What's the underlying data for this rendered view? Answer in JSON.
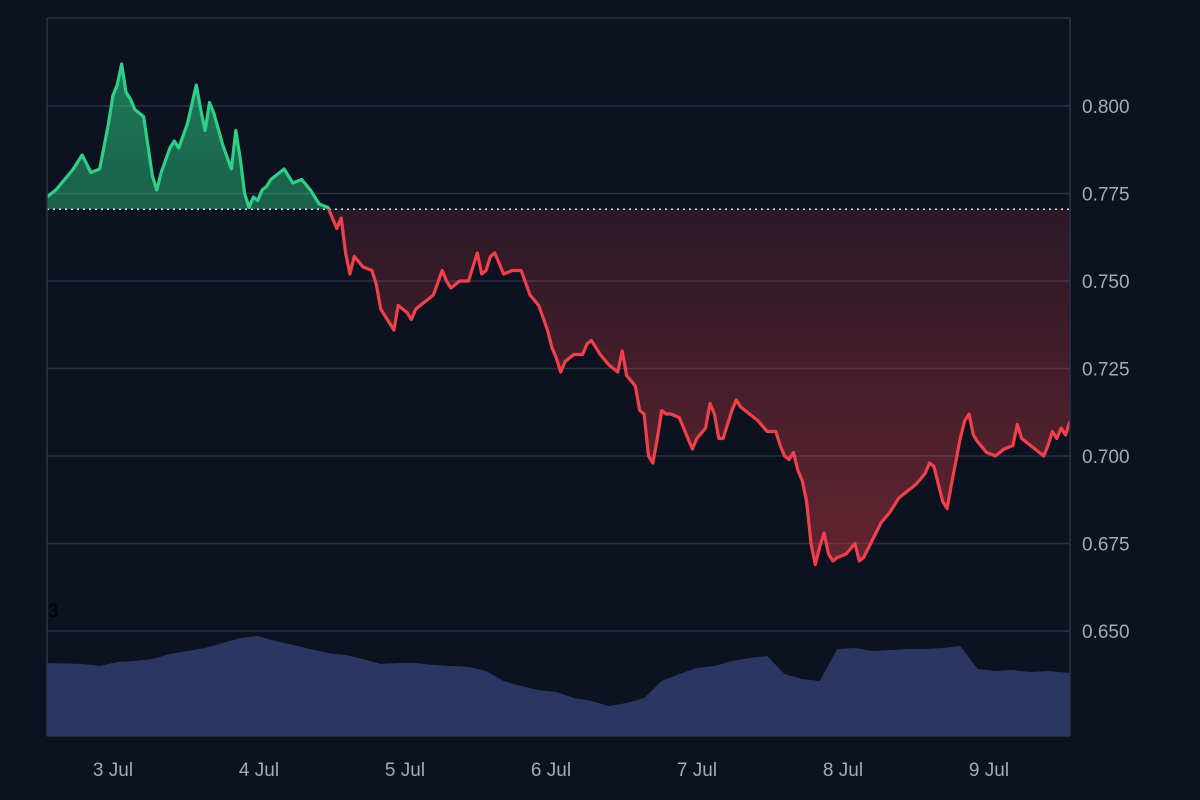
{
  "chart_data": {
    "type": "area",
    "title": "",
    "xlabel": "",
    "ylabel": "",
    "x_ticks": [
      "3 Jul",
      "4 Jul",
      "5 Jul",
      "6 Jul",
      "7 Jul",
      "8 Jul",
      "9 Jul"
    ],
    "x_range": [
      "2 Jul 14:00",
      "9 Jul 14:00"
    ],
    "y_ticks": [
      "0.800",
      "0.775",
      "0.750",
      "0.725",
      "0.700",
      "0.675",
      "0.650"
    ],
    "y_tick_values": [
      0.8,
      0.775,
      0.75,
      0.725,
      0.7,
      0.675,
      0.65
    ],
    "ylim": [
      0.625,
      0.825
    ],
    "baseline": 0.7705,
    "grid": true,
    "colors": {
      "above": "#2ecf86",
      "below": "#f0414b",
      "volume": "#2c3a66",
      "baseline": "#d8dbe2",
      "grid": "#283142",
      "background": "#0c1220"
    },
    "series": [
      {
        "points": [
          [
            0.0,
            0.774
          ],
          [
            0.1,
            0.776
          ],
          [
            0.2,
            0.779
          ],
          [
            0.3,
            0.782
          ],
          [
            0.4,
            0.786
          ],
          [
            0.5,
            0.781
          ],
          [
            0.6,
            0.782
          ],
          [
            0.7,
            0.795
          ],
          [
            0.75,
            0.803
          ],
          [
            0.8,
            0.806
          ],
          [
            0.85,
            0.812
          ],
          [
            0.9,
            0.804
          ],
          [
            0.95,
            0.802
          ],
          [
            1.0,
            0.799
          ],
          [
            1.1,
            0.797
          ],
          [
            1.2,
            0.78
          ],
          [
            1.25,
            0.776
          ],
          [
            1.3,
            0.781
          ],
          [
            1.4,
            0.788
          ],
          [
            1.45,
            0.79
          ],
          [
            1.5,
            0.788
          ],
          [
            1.6,
            0.795
          ],
          [
            1.7,
            0.806
          ],
          [
            1.75,
            0.799
          ],
          [
            1.8,
            0.793
          ],
          [
            1.85,
            0.801
          ],
          [
            1.9,
            0.798
          ],
          [
            2.0,
            0.789
          ],
          [
            2.1,
            0.782
          ],
          [
            2.15,
            0.793
          ],
          [
            2.2,
            0.785
          ],
          [
            2.25,
            0.775
          ],
          [
            2.3,
            0.771
          ],
          [
            2.35,
            0.774
          ],
          [
            2.4,
            0.773
          ],
          [
            2.45,
            0.776
          ],
          [
            2.5,
            0.777
          ],
          [
            2.55,
            0.779
          ],
          [
            2.6,
            0.78
          ],
          [
            2.7,
            0.782
          ],
          [
            2.8,
            0.778
          ],
          [
            2.9,
            0.779
          ],
          [
            3.0,
            0.776
          ],
          [
            3.1,
            0.772
          ],
          [
            3.2,
            0.771
          ],
          [
            3.3,
            0.765
          ],
          [
            3.35,
            0.768
          ],
          [
            3.4,
            0.758
          ],
          [
            3.45,
            0.752
          ],
          [
            3.5,
            0.757
          ],
          [
            3.6,
            0.754
          ],
          [
            3.7,
            0.753
          ],
          [
            3.75,
            0.749
          ],
          [
            3.8,
            0.742
          ],
          [
            3.9,
            0.738
          ],
          [
            3.95,
            0.736
          ],
          [
            4.0,
            0.743
          ],
          [
            4.1,
            0.741
          ],
          [
            4.15,
            0.739
          ],
          [
            4.2,
            0.742
          ],
          [
            4.3,
            0.744
          ],
          [
            4.4,
            0.746
          ],
          [
            4.5,
            0.753
          ],
          [
            4.55,
            0.75
          ],
          [
            4.6,
            0.748
          ],
          [
            4.7,
            0.75
          ],
          [
            4.8,
            0.75
          ],
          [
            4.85,
            0.754
          ],
          [
            4.9,
            0.758
          ],
          [
            4.95,
            0.752
          ],
          [
            5.0,
            0.753
          ],
          [
            5.05,
            0.757
          ],
          [
            5.1,
            0.758
          ],
          [
            5.2,
            0.752
          ],
          [
            5.3,
            0.753
          ],
          [
            5.4,
            0.753
          ],
          [
            5.5,
            0.746
          ],
          [
            5.6,
            0.743
          ],
          [
            5.7,
            0.736
          ],
          [
            5.75,
            0.731
          ],
          [
            5.8,
            0.728
          ],
          [
            5.85,
            0.724
          ],
          [
            5.9,
            0.727
          ],
          [
            6.0,
            0.729
          ],
          [
            6.1,
            0.729
          ],
          [
            6.15,
            0.732
          ],
          [
            6.2,
            0.733
          ],
          [
            6.3,
            0.729
          ],
          [
            6.4,
            0.726
          ],
          [
            6.5,
            0.724
          ],
          [
            6.55,
            0.73
          ],
          [
            6.6,
            0.723
          ],
          [
            6.7,
            0.72
          ],
          [
            6.75,
            0.713
          ],
          [
            6.8,
            0.712
          ],
          [
            6.85,
            0.7
          ],
          [
            6.9,
            0.698
          ],
          [
            6.95,
            0.705
          ],
          [
            7.0,
            0.713
          ],
          [
            7.05,
            0.712
          ],
          [
            7.1,
            0.712
          ],
          [
            7.2,
            0.711
          ],
          [
            7.3,
            0.705
          ],
          [
            7.35,
            0.702
          ],
          [
            7.4,
            0.705
          ],
          [
            7.5,
            0.708
          ],
          [
            7.55,
            0.715
          ],
          [
            7.6,
            0.712
          ],
          [
            7.65,
            0.705
          ],
          [
            7.7,
            0.705
          ],
          [
            7.8,
            0.713
          ],
          [
            7.85,
            0.716
          ],
          [
            7.9,
            0.714
          ],
          [
            8.0,
            0.712
          ],
          [
            8.1,
            0.71
          ],
          [
            8.2,
            0.707
          ],
          [
            8.3,
            0.707
          ],
          [
            8.35,
            0.703
          ],
          [
            8.4,
            0.7
          ],
          [
            8.45,
            0.699
          ],
          [
            8.5,
            0.701
          ],
          [
            8.55,
            0.696
          ],
          [
            8.6,
            0.693
          ],
          [
            8.65,
            0.687
          ],
          [
            8.7,
            0.675
          ],
          [
            8.75,
            0.669
          ],
          [
            8.8,
            0.674
          ],
          [
            8.85,
            0.678
          ],
          [
            8.9,
            0.672
          ],
          [
            8.95,
            0.67
          ],
          [
            9.0,
            0.671
          ],
          [
            9.1,
            0.672
          ],
          [
            9.2,
            0.675
          ],
          [
            9.25,
            0.67
          ],
          [
            9.3,
            0.671
          ],
          [
            9.4,
            0.676
          ],
          [
            9.5,
            0.681
          ],
          [
            9.6,
            0.684
          ],
          [
            9.7,
            0.688
          ],
          [
            9.8,
            0.69
          ],
          [
            9.9,
            0.692
          ],
          [
            10.0,
            0.695
          ],
          [
            10.05,
            0.698
          ],
          [
            10.1,
            0.697
          ],
          [
            10.15,
            0.692
          ],
          [
            10.2,
            0.687
          ],
          [
            10.25,
            0.685
          ],
          [
            10.3,
            0.692
          ],
          [
            10.4,
            0.705
          ],
          [
            10.45,
            0.71
          ],
          [
            10.5,
            0.712
          ],
          [
            10.55,
            0.706
          ],
          [
            10.6,
            0.704
          ],
          [
            10.7,
            0.701
          ],
          [
            10.8,
            0.7
          ],
          [
            10.9,
            0.702
          ],
          [
            11.0,
            0.703
          ],
          [
            11.05,
            0.709
          ],
          [
            11.1,
            0.705
          ],
          [
            11.2,
            0.703
          ],
          [
            11.3,
            0.701
          ],
          [
            11.35,
            0.7
          ],
          [
            11.4,
            0.703
          ],
          [
            11.45,
            0.707
          ],
          [
            11.5,
            0.705
          ],
          [
            11.55,
            0.708
          ],
          [
            11.6,
            0.706
          ],
          [
            11.65,
            0.71
          ]
        ]
      }
    ],
    "volume": {
      "label": "3",
      "points": [
        [
          0.0,
          0.73
        ],
        [
          0.4,
          0.72
        ],
        [
          0.6,
          0.7
        ],
        [
          0.8,
          0.74
        ],
        [
          1.0,
          0.75
        ],
        [
          1.2,
          0.77
        ],
        [
          1.4,
          0.82
        ],
        [
          1.6,
          0.85
        ],
        [
          1.8,
          0.88
        ],
        [
          2.0,
          0.93
        ],
        [
          2.2,
          0.98
        ],
        [
          2.4,
          1.0
        ],
        [
          2.6,
          0.95
        ],
        [
          2.8,
          0.91
        ],
        [
          3.0,
          0.87
        ],
        [
          3.2,
          0.83
        ],
        [
          3.4,
          0.81
        ],
        [
          3.6,
          0.77
        ],
        [
          3.8,
          0.72
        ],
        [
          4.0,
          0.73
        ],
        [
          4.2,
          0.73
        ],
        [
          4.4,
          0.71
        ],
        [
          4.6,
          0.7
        ],
        [
          4.8,
          0.69
        ],
        [
          5.0,
          0.65
        ],
        [
          5.2,
          0.55
        ],
        [
          5.4,
          0.5
        ],
        [
          5.6,
          0.46
        ],
        [
          5.8,
          0.44
        ],
        [
          6.0,
          0.38
        ],
        [
          6.2,
          0.35
        ],
        [
          6.4,
          0.3
        ],
        [
          6.6,
          0.33
        ],
        [
          6.8,
          0.38
        ],
        [
          7.0,
          0.55
        ],
        [
          7.2,
          0.62
        ],
        [
          7.4,
          0.68
        ],
        [
          7.6,
          0.7
        ],
        [
          7.8,
          0.75
        ],
        [
          8.0,
          0.78
        ],
        [
          8.2,
          0.8
        ],
        [
          8.4,
          0.62
        ],
        [
          8.6,
          0.57
        ],
        [
          8.8,
          0.55
        ],
        [
          9.0,
          0.87
        ],
        [
          9.2,
          0.88
        ],
        [
          9.4,
          0.85
        ],
        [
          9.6,
          0.86
        ],
        [
          9.8,
          0.87
        ],
        [
          10.0,
          0.87
        ],
        [
          10.2,
          0.88
        ],
        [
          10.4,
          0.9
        ],
        [
          10.6,
          0.67
        ],
        [
          10.8,
          0.65
        ],
        [
          11.0,
          0.66
        ],
        [
          11.2,
          0.64
        ],
        [
          11.4,
          0.65
        ],
        [
          11.65,
          0.63
        ]
      ]
    }
  }
}
